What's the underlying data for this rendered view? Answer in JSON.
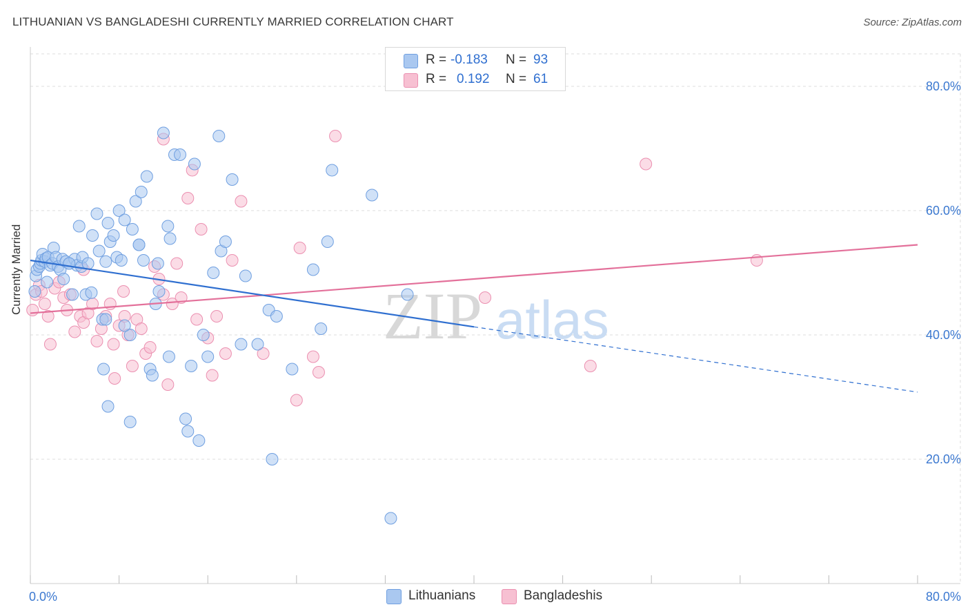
{
  "header": {
    "title": "LITHUANIAN VS BANGLADESHI CURRENTLY MARRIED CORRELATION CHART",
    "source": "Source: ZipAtlas.com"
  },
  "colors": {
    "lithuanians_fill": "#aac8f0",
    "lithuanians_stroke": "#6f9fe0",
    "lithuanians_line": "#2f6fd0",
    "bangladeshis_fill": "#f7c0d2",
    "bangladeshis_stroke": "#eb8fb0",
    "bangladeshis_line": "#e3709a",
    "axis_label": "#3b78d0",
    "grid": "#dddddd"
  },
  "legend": {
    "row1": {
      "r_label": "R =",
      "r_value": "-0.183",
      "n_label": "N =",
      "n_value": "93"
    },
    "row2": {
      "r_label": "R =",
      "r_value": "0.192",
      "n_label": "N =",
      "n_value": "61"
    }
  },
  "bottom_legend": {
    "series1": "Lithuanians",
    "series2": "Bangladeshis"
  },
  "watermark": {
    "part1": "ZIP",
    "part2": "atlas"
  },
  "chart_data": {
    "type": "scatter",
    "title": "LITHUANIAN VS BANGLADESHI CURRENTLY MARRIED CORRELATION CHART",
    "xlabel": "",
    "ylabel": "Currently Married",
    "xlim": [
      0,
      80
    ],
    "ylim": [
      0,
      85
    ],
    "x_tick_labels": [
      "0.0%",
      "80.0%"
    ],
    "y_ticks": [
      20,
      40,
      60,
      80
    ],
    "y_tick_labels": [
      "20.0%",
      "40.0%",
      "60.0%",
      "80.0%"
    ],
    "grid": true,
    "legend_position": "top-center",
    "series": [
      {
        "name": "Lithuanians",
        "R": -0.183,
        "N": 93,
        "trend": {
          "x": [
            0,
            40
          ],
          "y": [
            52.0,
            41.3
          ],
          "dashed_to": [
            80,
            30.8
          ]
        },
        "points": [
          [
            0.4,
            47.0
          ],
          [
            0.5,
            49.5
          ],
          [
            0.6,
            50.5
          ],
          [
            0.8,
            51.0
          ],
          [
            0.9,
            51.5
          ],
          [
            1.0,
            52.0
          ],
          [
            1.1,
            53.0
          ],
          [
            1.3,
            51.8
          ],
          [
            1.4,
            52.3
          ],
          [
            1.6,
            52.5
          ],
          [
            1.8,
            51.2
          ],
          [
            2.0,
            51.5
          ],
          [
            2.1,
            54.0
          ],
          [
            2.3,
            52.5
          ],
          [
            2.5,
            51.0
          ],
          [
            2.7,
            50.5
          ],
          [
            2.9,
            52.2
          ],
          [
            3.0,
            49.0
          ],
          [
            3.2,
            51.8
          ],
          [
            3.5,
            51.5
          ],
          [
            3.8,
            46.5
          ],
          [
            4.0,
            52.2
          ],
          [
            4.2,
            51.2
          ],
          [
            4.4,
            57.5
          ],
          [
            4.6,
            51.0
          ],
          [
            4.7,
            52.5
          ],
          [
            5.0,
            46.5
          ],
          [
            5.2,
            51.5
          ],
          [
            5.5,
            46.8
          ],
          [
            5.6,
            56.0
          ],
          [
            6.0,
            59.5
          ],
          [
            6.2,
            53.5
          ],
          [
            6.5,
            42.5
          ],
          [
            6.6,
            34.5
          ],
          [
            6.8,
            51.8
          ],
          [
            7.0,
            58.0
          ],
          [
            7.2,
            55.0
          ],
          [
            7.5,
            56.0
          ],
          [
            7.8,
            52.5
          ],
          [
            8.0,
            60.0
          ],
          [
            8.2,
            52.0
          ],
          [
            8.5,
            58.5
          ],
          [
            9.0,
            40.0
          ],
          [
            9.2,
            57.0
          ],
          [
            9.5,
            61.5
          ],
          [
            9.8,
            54.5
          ],
          [
            10.0,
            63.0
          ],
          [
            10.2,
            52.0
          ],
          [
            10.5,
            65.5
          ],
          [
            10.8,
            34.5
          ],
          [
            11.0,
            33.5
          ],
          [
            11.3,
            45.0
          ],
          [
            11.6,
            47.0
          ],
          [
            12.0,
            72.5
          ],
          [
            12.4,
            57.5
          ],
          [
            12.6,
            55.5
          ],
          [
            13.0,
            69.0
          ],
          [
            13.5,
            69.0
          ],
          [
            14.0,
            26.5
          ],
          [
            14.2,
            24.5
          ],
          [
            14.8,
            67.5
          ],
          [
            15.2,
            23.0
          ],
          [
            15.6,
            40.0
          ],
          [
            16.0,
            36.5
          ],
          [
            16.5,
            50.0
          ],
          [
            17.0,
            72.0
          ],
          [
            17.2,
            53.5
          ],
          [
            17.6,
            55.0
          ],
          [
            18.2,
            65.0
          ],
          [
            19.0,
            38.5
          ],
          [
            19.4,
            49.5
          ],
          [
            20.5,
            38.5
          ],
          [
            21.5,
            44.0
          ],
          [
            21.8,
            20.0
          ],
          [
            22.2,
            43.0
          ],
          [
            23.6,
            34.5
          ],
          [
            25.5,
            50.5
          ],
          [
            26.2,
            41.0
          ],
          [
            26.8,
            55.0
          ],
          [
            27.2,
            66.5
          ],
          [
            30.8,
            62.5
          ],
          [
            32.5,
            10.5
          ],
          [
            34.0,
            46.5
          ],
          [
            1.5,
            48.5
          ],
          [
            3.5,
            51.5
          ],
          [
            6.8,
            42.5
          ],
          [
            8.5,
            41.5
          ],
          [
            9.8,
            54.5
          ],
          [
            7.0,
            28.5
          ],
          [
            9.0,
            26.0
          ],
          [
            12.5,
            36.5
          ],
          [
            11.5,
            51.5
          ],
          [
            14.5,
            35.0
          ]
        ]
      },
      {
        "name": "Bangladeshis",
        "R": 0.192,
        "N": 61,
        "trend": {
          "x": [
            0,
            80
          ],
          "y": [
            43.5,
            54.5
          ]
        },
        "points": [
          [
            0.2,
            44.0
          ],
          [
            0.5,
            46.5
          ],
          [
            0.8,
            48.0
          ],
          [
            1.0,
            47.0
          ],
          [
            1.3,
            45.0
          ],
          [
            1.6,
            43.0
          ],
          [
            1.8,
            38.5
          ],
          [
            2.2,
            47.5
          ],
          [
            2.6,
            48.5
          ],
          [
            3.0,
            46.0
          ],
          [
            3.3,
            44.0
          ],
          [
            3.6,
            46.5
          ],
          [
            4.0,
            40.5
          ],
          [
            4.5,
            43.0
          ],
          [
            4.8,
            42.0
          ],
          [
            5.2,
            43.5
          ],
          [
            5.6,
            45.0
          ],
          [
            6.0,
            39.0
          ],
          [
            6.4,
            41.0
          ],
          [
            6.8,
            43.0
          ],
          [
            7.2,
            45.0
          ],
          [
            7.6,
            33.0
          ],
          [
            8.0,
            41.5
          ],
          [
            8.4,
            47.0
          ],
          [
            8.8,
            40.0
          ],
          [
            9.2,
            35.0
          ],
          [
            9.6,
            42.5
          ],
          [
            10.0,
            41.0
          ],
          [
            10.4,
            37.0
          ],
          [
            10.8,
            38.0
          ],
          [
            11.2,
            51.0
          ],
          [
            11.6,
            49.0
          ],
          [
            12.0,
            46.5
          ],
          [
            12.4,
            32.0
          ],
          [
            12.8,
            45.0
          ],
          [
            13.2,
            51.5
          ],
          [
            13.6,
            46.0
          ],
          [
            14.2,
            62.0
          ],
          [
            14.6,
            66.5
          ],
          [
            15.0,
            42.5
          ],
          [
            15.4,
            57.0
          ],
          [
            16.0,
            39.5
          ],
          [
            16.4,
            33.5
          ],
          [
            16.8,
            43.0
          ],
          [
            17.6,
            37.0
          ],
          [
            18.2,
            52.0
          ],
          [
            19.0,
            61.5
          ],
          [
            21.0,
            37.0
          ],
          [
            24.0,
            29.5
          ],
          [
            24.3,
            54.0
          ],
          [
            25.5,
            36.5
          ],
          [
            26.0,
            34.0
          ],
          [
            27.5,
            72.0
          ],
          [
            41.0,
            46.0
          ],
          [
            50.5,
            35.0
          ],
          [
            55.5,
            67.5
          ],
          [
            65.5,
            52.0
          ],
          [
            4.8,
            50.5
          ],
          [
            7.5,
            38.5
          ],
          [
            12.0,
            71.5
          ],
          [
            8.5,
            43.0
          ]
        ]
      }
    ]
  }
}
